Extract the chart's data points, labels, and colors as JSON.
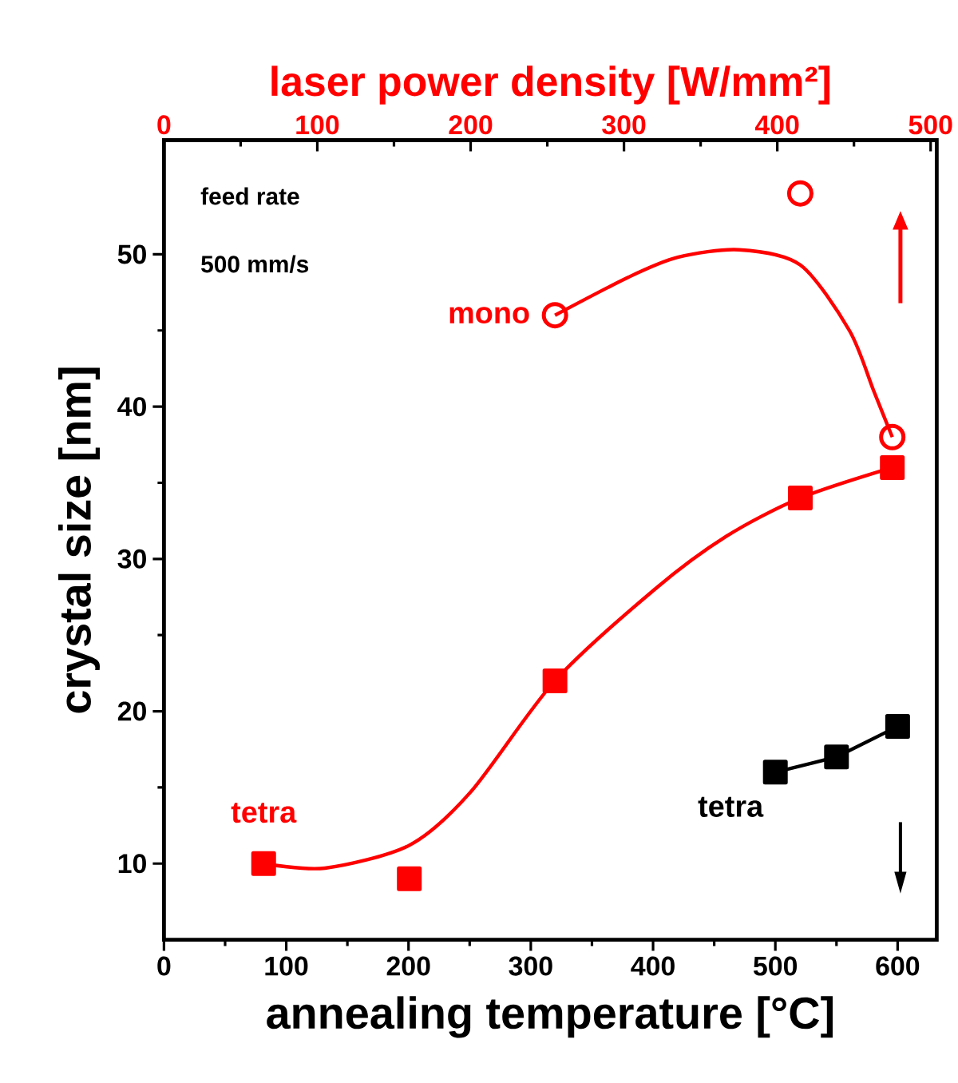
{
  "chart_data": {
    "type": "line",
    "xlabel": "annealing temperature [°C]",
    "x2label": "laser power density [W/mm²]",
    "ylabel": "crystal size [nm]",
    "xlim": [
      0,
      632
    ],
    "xticks": [
      0,
      100,
      200,
      300,
      400,
      500,
      600
    ],
    "x2lim": [
      0,
      504
    ],
    "x2ticks": [
      0,
      100,
      200,
      300,
      400,
      500
    ],
    "ylim": [
      5,
      57.5
    ],
    "yticks": [
      10,
      20,
      30,
      40,
      50
    ],
    "annotations": [
      "feed rate",
      "500 mm/s"
    ],
    "series": [
      {
        "name": "tetra",
        "type": "scatter",
        "axis": "x2",
        "color": "#ff0000",
        "marker": "square",
        "x": [
          65,
          160,
          255,
          415,
          475
        ],
        "values": [
          10,
          9,
          22,
          34,
          36
        ]
      },
      {
        "axis": "x2",
        "color": "#ff0000",
        "marker": "none",
        "x": [
          65,
          105,
          160,
          200,
          255,
          320,
          367,
          415,
          475
        ],
        "values": [
          10,
          9.7,
          11.2,
          14.7,
          22,
          28,
          31.5,
          34,
          36
        ]
      },
      {
        "name": "mono",
        "type": "scatter",
        "axis": "x2",
        "color": "#ff0000",
        "marker": "circle",
        "x": [
          255,
          415,
          475
        ],
        "values": [
          46,
          54,
          38
        ]
      },
      {
        "axis": "x2",
        "color": "#ff0000",
        "marker": "none",
        "x": [
          255,
          303,
          335,
          375,
          415,
          447,
          463,
          475
        ],
        "values": [
          46,
          48.5,
          49.8,
          50.3,
          49.3,
          45,
          41,
          38
        ]
      },
      {
        "name": "tetra",
        "color": "#000000",
        "marker": "square",
        "x": [
          500,
          550,
          600
        ],
        "values": [
          16,
          17,
          19
        ]
      }
    ]
  }
}
